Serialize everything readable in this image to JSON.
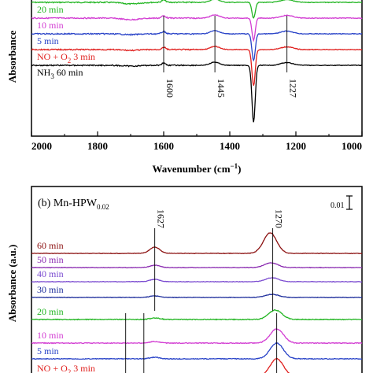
{
  "chart_data": [
    {
      "panel": "a",
      "type": "line",
      "xlabel_main": "Wavenumber (cm",
      "xlabel_sup": "−1",
      "xlabel_close": ")",
      "ylabel": "Absorbance",
      "xlim": [
        2000,
        1000
      ],
      "xticks": [
        "2000",
        "1800",
        "1600",
        "1400",
        "1200",
        "1000"
      ],
      "xtick_values": [
        2000,
        1800,
        1600,
        1400,
        1200,
        1000
      ],
      "peaks": [
        {
          "x": 1600,
          "label": "1600"
        },
        {
          "x": 1445,
          "label": "1445"
        },
        {
          "x": 1227,
          "label": "1227"
        }
      ],
      "series": [
        {
          "name": "20 min",
          "color": "#22b522"
        },
        {
          "name": "10 min",
          "color": "#d23cd2"
        },
        {
          "name": "5 min",
          "color": "#2a44c8"
        },
        {
          "name": "NO + O",
          "sub": "2",
          "suffix": " 3 min",
          "color": "#e0201e"
        },
        {
          "name": "NH",
          "sub": "3",
          "suffix": " 60 min",
          "color": "#000000"
        }
      ]
    },
    {
      "panel": "b",
      "type": "line",
      "title_main": "(b) Mn-HPW",
      "title_sub": "0.02",
      "ylabel": "Absorbance (a.u.)",
      "scale_bar_label": "0.01",
      "xlim": [
        2000,
        1000
      ],
      "peaks": [
        {
          "x": 1627,
          "label": "1627"
        },
        {
          "x": 1270,
          "label": "1270"
        }
      ],
      "series": [
        {
          "name": "60 min",
          "color": "#8b1010"
        },
        {
          "name": "50 min",
          "color": "#8a2ab0"
        },
        {
          "name": "40 min",
          "color": "#7a4ad0"
        },
        {
          "name": "30 min",
          "color": "#1a2a9a"
        },
        {
          "name": "20 min",
          "color": "#22b522"
        },
        {
          "name": "10 min",
          "color": "#d23cd2"
        },
        {
          "name": "5 min",
          "color": "#2a44c8"
        },
        {
          "name": "NO + O",
          "sub": "2",
          "suffix": " 3 min",
          "color": "#e0201e"
        }
      ]
    }
  ]
}
